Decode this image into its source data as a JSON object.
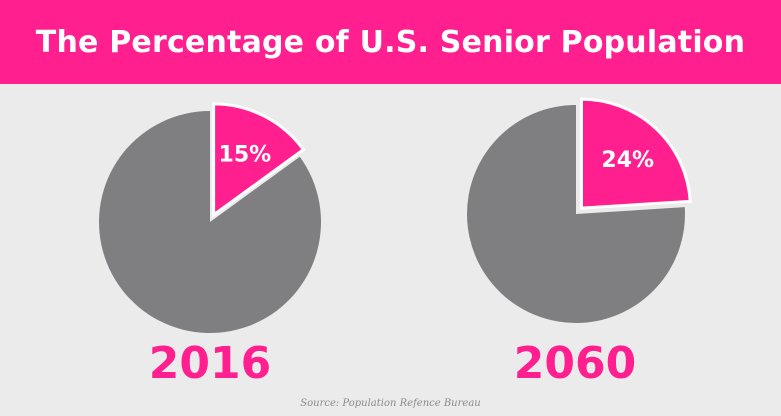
{
  "header": {
    "title": "The Percentage of U.S. Senior Population"
  },
  "footer": {
    "source": "Source: Population Refence Bureau"
  },
  "colors": {
    "accent": "#ff1f8e",
    "rest": "#7f7e80",
    "background": "#ecebec"
  },
  "chart_data": [
    {
      "type": "pie",
      "title": "2016",
      "slices": [
        {
          "value": 15,
          "label": "15%",
          "color": "#ff1f8e",
          "exploded": true
        },
        {
          "value": 85,
          "label": "",
          "color": "#7f7e80",
          "exploded": false
        }
      ]
    },
    {
      "type": "pie",
      "title": "2060",
      "slices": [
        {
          "value": 24,
          "label": "24%",
          "color": "#ff1f8e",
          "exploded": true
        },
        {
          "value": 76,
          "label": "",
          "color": "#7f7e80",
          "exploded": false
        }
      ]
    }
  ]
}
